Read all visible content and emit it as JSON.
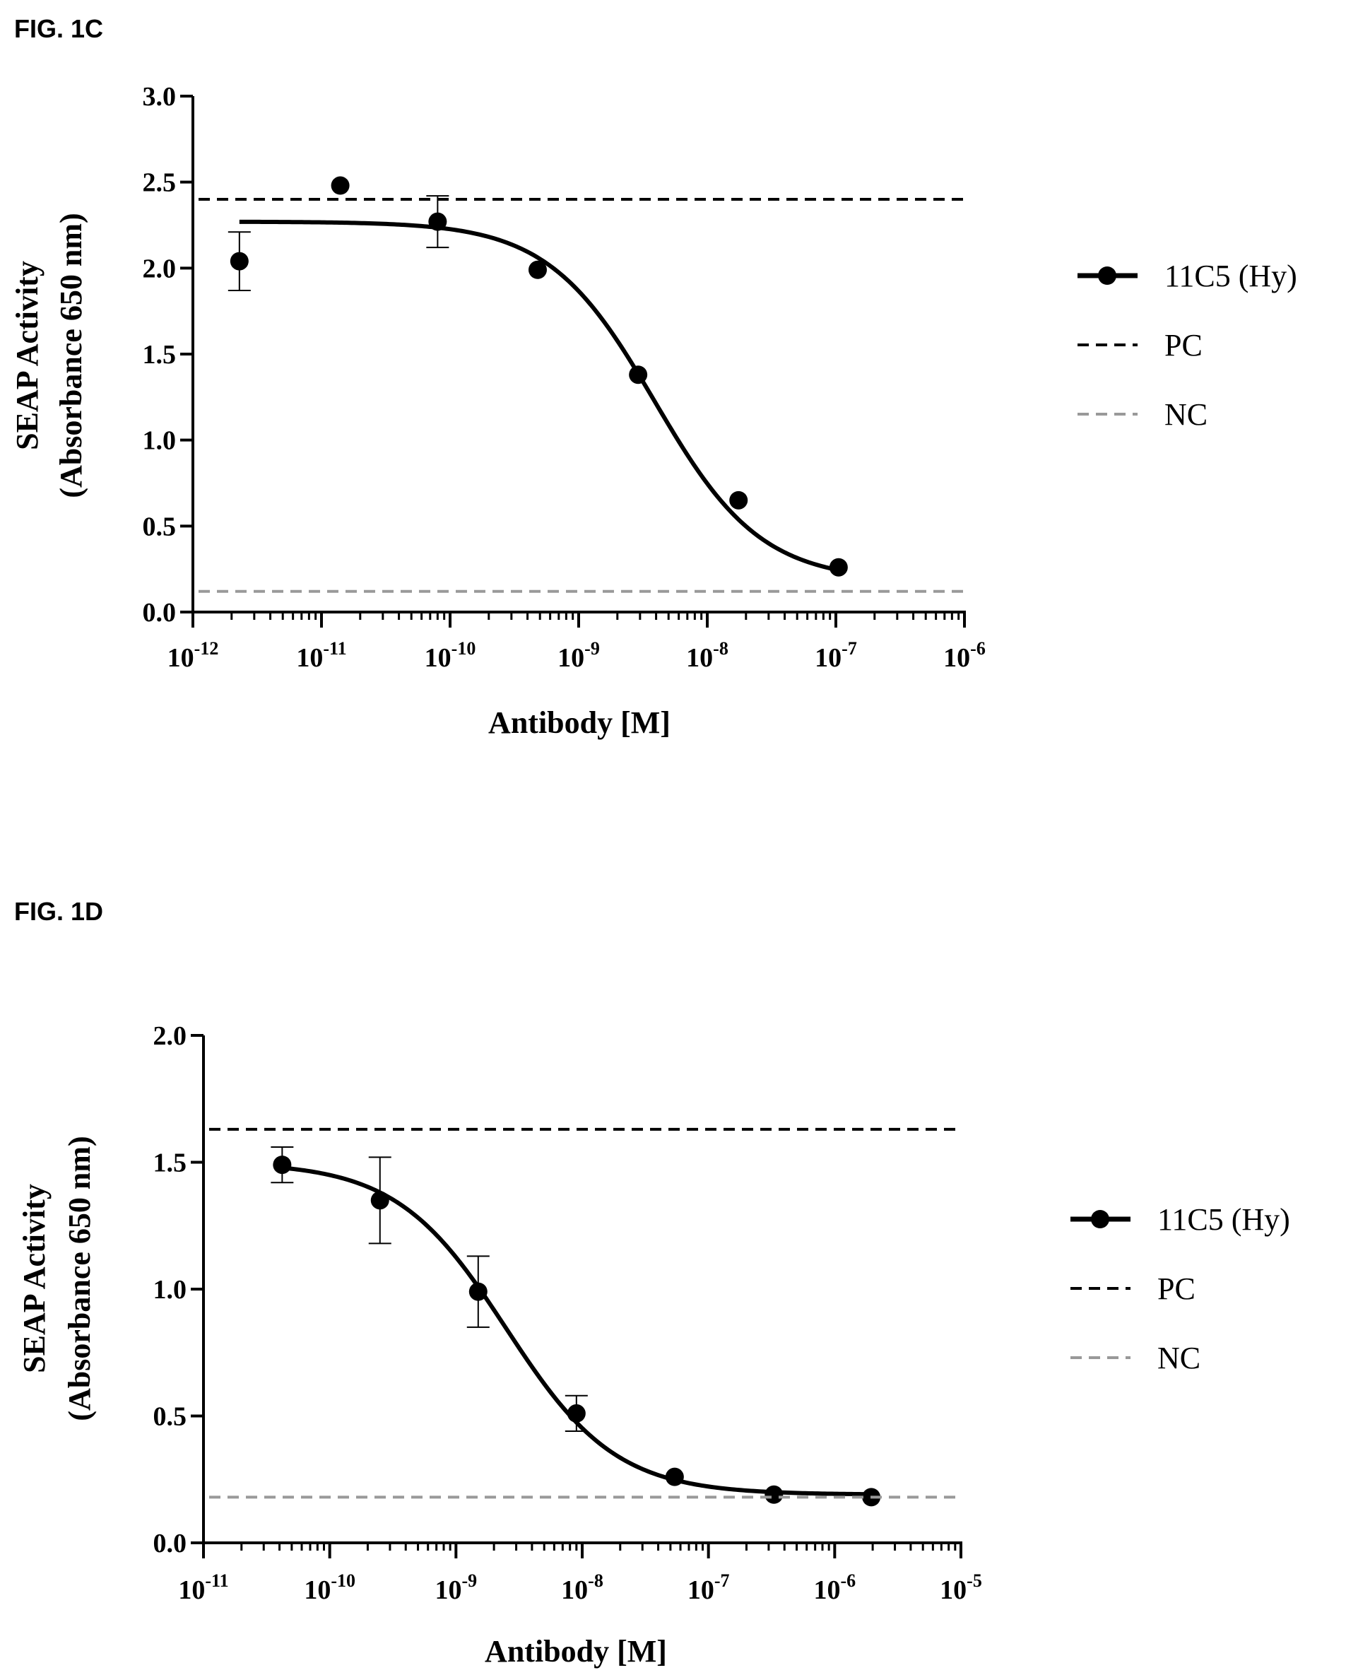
{
  "chart_data": [
    {
      "type": "scatter",
      "figure_label": "FIG. 1C",
      "xlabel": "Antibody [M]",
      "ylabel_lines": [
        "SEAP Activity",
        "(Absorbance 650 nm)"
      ],
      "x_scale": "log",
      "xlim": [
        1e-12,
        1e-06
      ],
      "ylim": [
        0,
        3.0
      ],
      "x_ticks": [
        {
          "base": "10",
          "exp": "-12"
        },
        {
          "base": "10",
          "exp": "-11"
        },
        {
          "base": "10",
          "exp": "-10"
        },
        {
          "base": "10",
          "exp": "-9"
        },
        {
          "base": "10",
          "exp": "-8"
        },
        {
          "base": "10",
          "exp": "-7"
        },
        {
          "base": "10",
          "exp": "-6"
        }
      ],
      "y_ticks": [
        "0.0",
        "0.5",
        "1.0",
        "1.5",
        "2.0",
        "2.5",
        "3.0"
      ],
      "legend_position": "right",
      "series": [
        {
          "name": "11C5 (Hy)",
          "style": "points-with-fit",
          "color": "#000000",
          "x": [
            2.3e-12,
            1.4e-11,
            8e-11,
            4.8e-10,
            2.9e-09,
            1.75e-08,
            1.05e-07
          ],
          "y": [
            2.04,
            2.48,
            2.27,
            1.99,
            1.38,
            0.65,
            0.26
          ],
          "err": [
            0.17,
            0,
            0.15,
            0,
            0,
            0,
            0
          ],
          "fit": {
            "model": "4PL",
            "bottom": 0.18,
            "top": 2.27,
            "ec50": 3.9e-09,
            "hill": 1.05,
            "x_range": [
              2.3e-12,
              1.05e-07
            ]
          }
        },
        {
          "name": "PC",
          "style": "dashed",
          "color": "#000000",
          "y": 2.4
        },
        {
          "name": "NC",
          "style": "dashed",
          "color": "#999999",
          "y": 0.12
        }
      ]
    },
    {
      "type": "scatter",
      "figure_label": "FIG. 1D",
      "xlabel": "Antibody [M]",
      "ylabel_lines": [
        "SEAP Activity",
        "(Absorbance 650 nm)"
      ],
      "x_scale": "log",
      "xlim": [
        1e-11,
        1e-05
      ],
      "ylim": [
        0,
        2.0
      ],
      "x_ticks": [
        {
          "base": "10",
          "exp": "-11"
        },
        {
          "base": "10",
          "exp": "-10"
        },
        {
          "base": "10",
          "exp": "-9"
        },
        {
          "base": "10",
          "exp": "-8"
        },
        {
          "base": "10",
          "exp": "-7"
        },
        {
          "base": "10",
          "exp": "-6"
        },
        {
          "base": "10",
          "exp": "-5"
        }
      ],
      "y_ticks": [
        "0.0",
        "0.5",
        "1.0",
        "1.5",
        "2.0"
      ],
      "legend_position": "right",
      "series": [
        {
          "name": "11C5 (Hy)",
          "style": "points-with-fit",
          "color": "#000000",
          "x": [
            4.2e-11,
            2.5e-10,
            1.5e-09,
            9e-09,
            5.4e-08,
            3.3e-07,
            1.95e-06
          ],
          "y": [
            1.49,
            1.35,
            0.99,
            0.51,
            0.26,
            0.19,
            0.18
          ],
          "err": [
            0.07,
            0.17,
            0.14,
            0.07,
            0,
            0,
            0
          ],
          "fit": {
            "model": "4PL",
            "bottom": 0.19,
            "top": 1.5,
            "ec50": 2.5e-09,
            "hill": 1.0,
            "x_range": [
              4.2e-11,
              1.95e-06
            ]
          }
        },
        {
          "name": "PC",
          "style": "dashed",
          "color": "#000000",
          "y": 1.63
        },
        {
          "name": "NC",
          "style": "dashed",
          "color": "#999999",
          "y": 0.18
        }
      ]
    }
  ]
}
